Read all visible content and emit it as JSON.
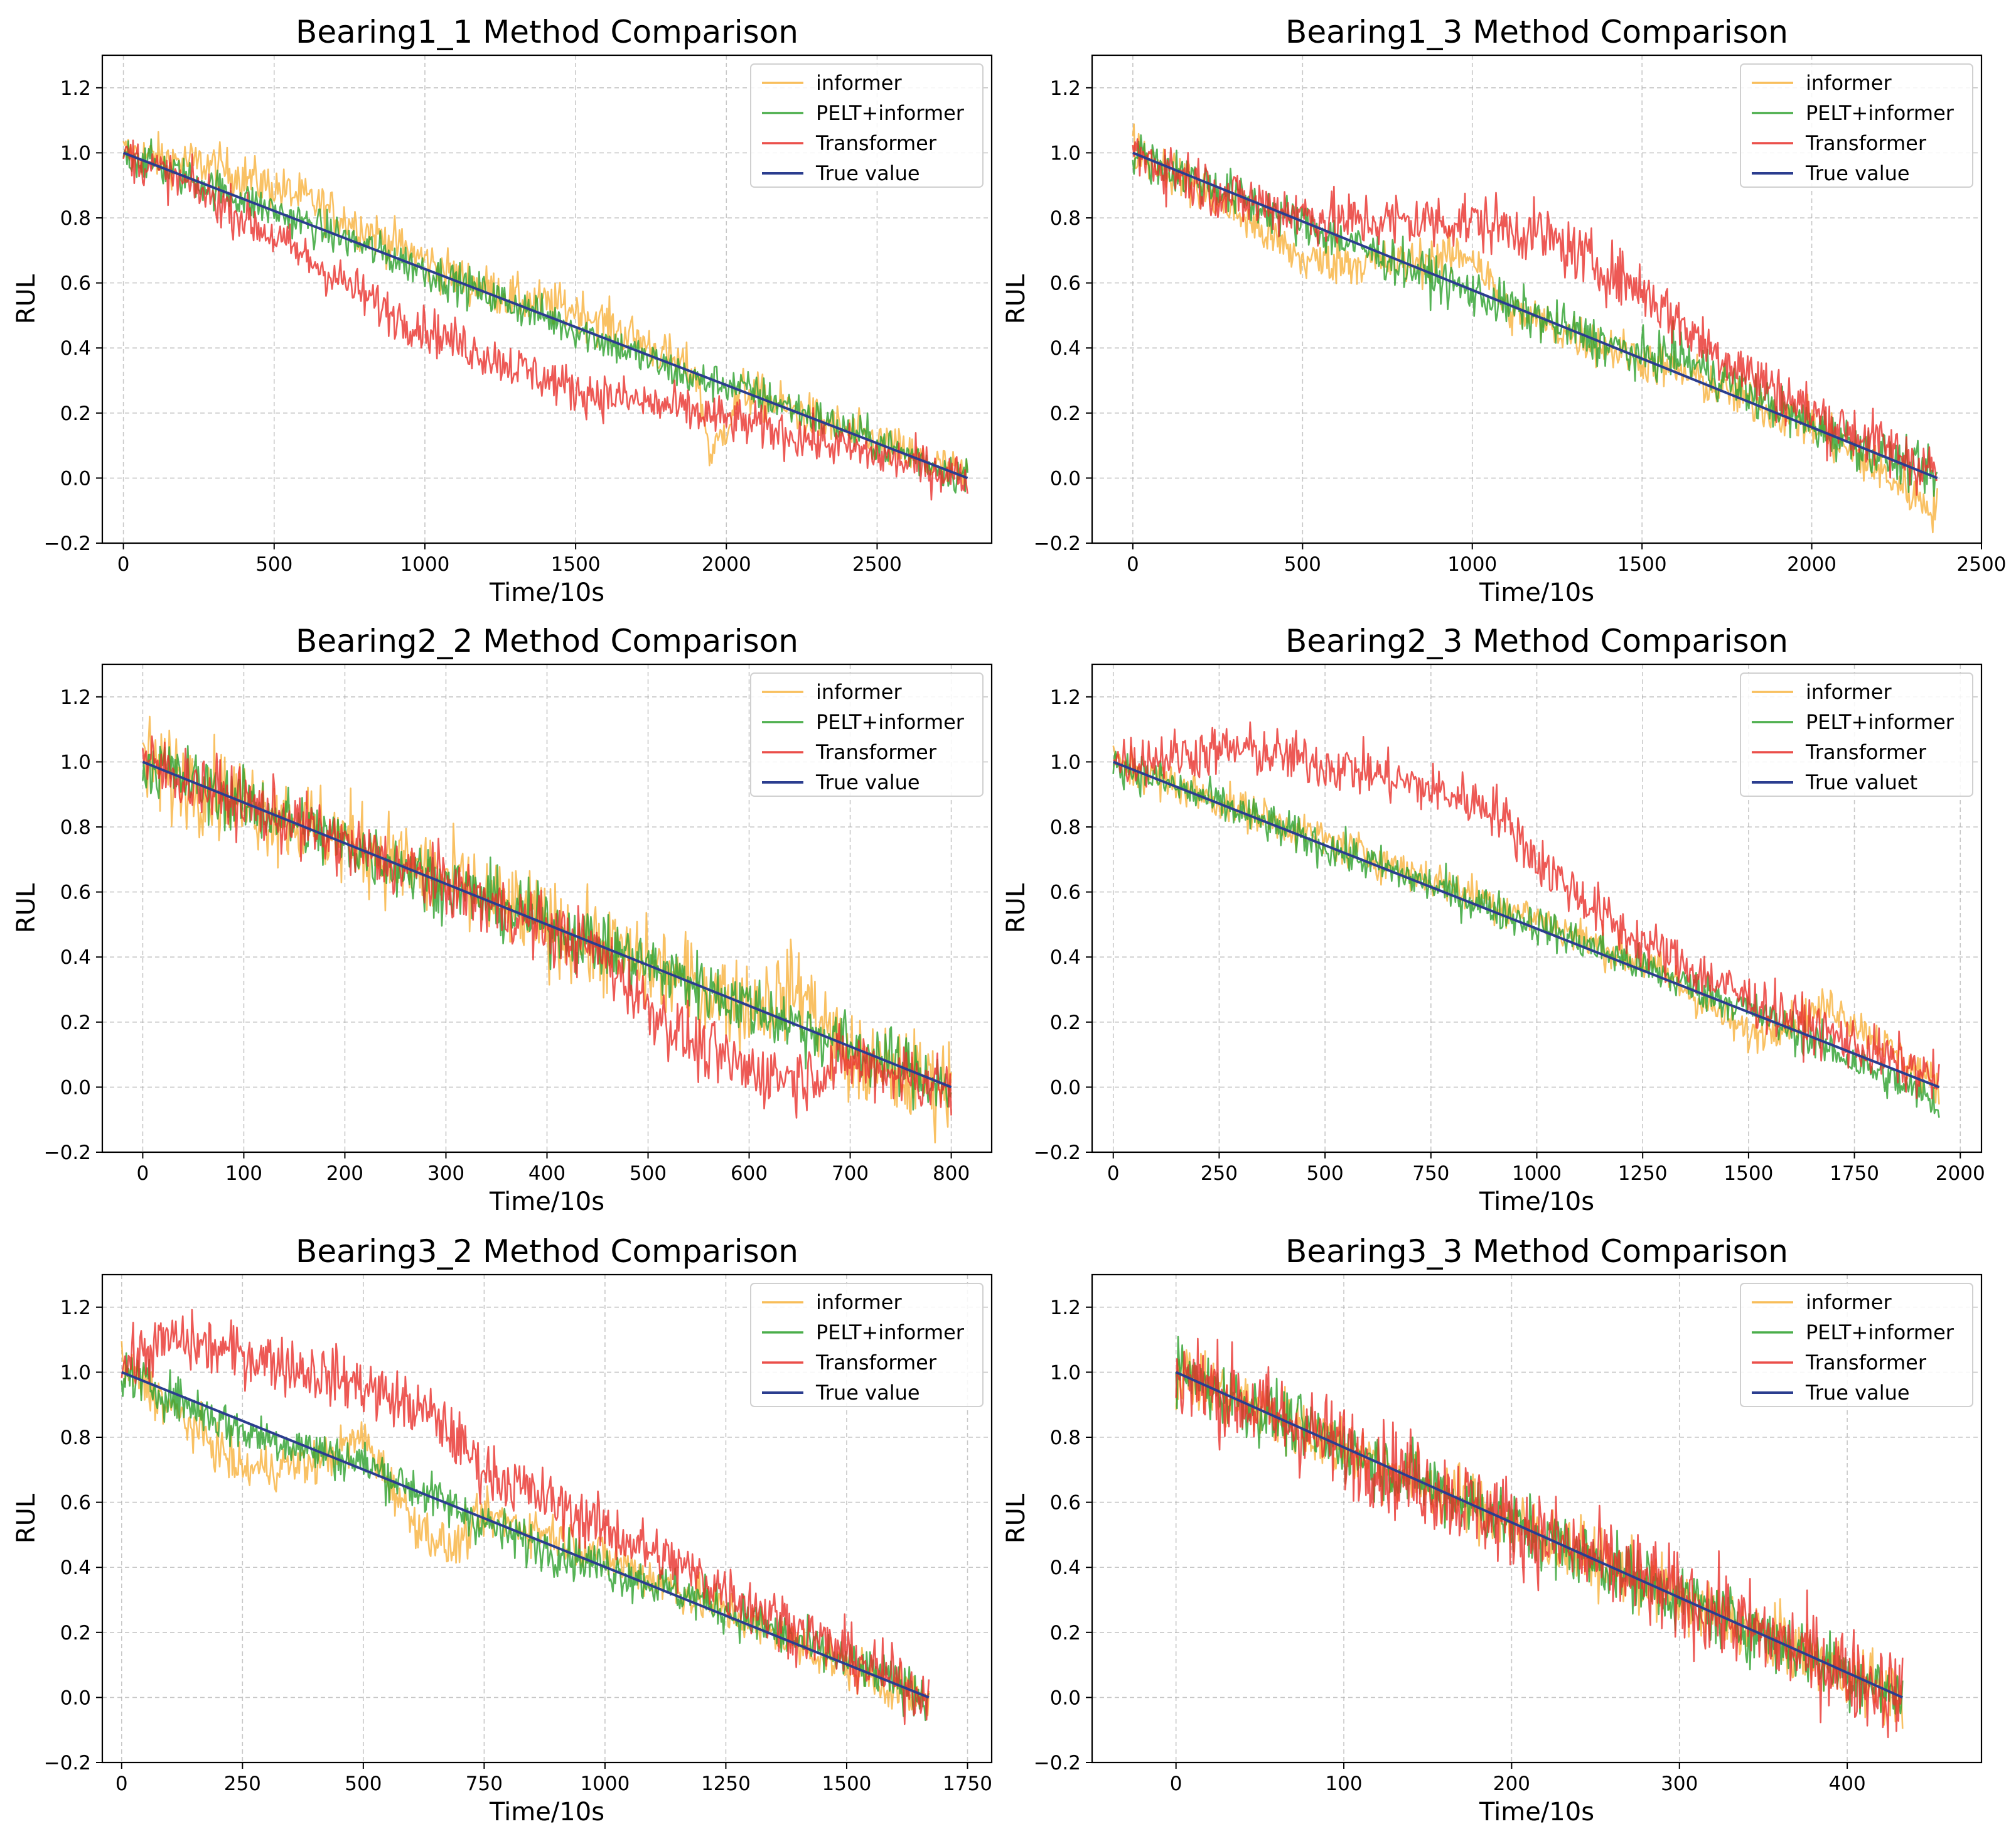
{
  "colors": {
    "informer": "#f7b13c",
    "pelt_informer": "#2ca02c",
    "transformer": "#e8302a",
    "true_value": "#2b3d8f"
  },
  "chart_data": [
    {
      "type": "line",
      "title": "Bearing1_1 Method Comparison",
      "xlabel": "Time/10s",
      "ylabel": "RUL",
      "xlim": [
        -70,
        2880
      ],
      "ylim": [
        -0.2,
        1.3
      ],
      "xticks": [
        0,
        500,
        1000,
        1500,
        2000,
        2500
      ],
      "yticks": [
        -0.2,
        0.0,
        0.2,
        0.4,
        0.6,
        0.8,
        1.0,
        1.2
      ],
      "grid": true,
      "legend_loc": "top-right",
      "series": [
        {
          "name": "informer",
          "color_key": "informer",
          "noise": 0.035,
          "x": [
            0,
            300,
            600,
            900,
            1100,
            1300,
            1500,
            1700,
            1900,
            1950,
            2050,
            2300,
            2800
          ],
          "y": [
            1.0,
            0.96,
            0.86,
            0.72,
            0.62,
            0.55,
            0.52,
            0.43,
            0.32,
            0.06,
            0.27,
            0.18,
            0.0
          ]
        },
        {
          "name": "PELT+informer",
          "color_key": "pelt_informer",
          "noise": 0.03,
          "x": [
            0,
            500,
            1000,
            1500,
            1900,
            2000,
            2100,
            2500,
            2800
          ],
          "y": [
            1.0,
            0.82,
            0.64,
            0.46,
            0.3,
            0.29,
            0.26,
            0.11,
            0.0
          ]
        },
        {
          "name": "Transformer",
          "color_key": "transformer",
          "noise": 0.035,
          "x": [
            0,
            300,
            600,
            900,
            1200,
            1500,
            1800,
            2100,
            2500,
            2800
          ],
          "y": [
            1.0,
            0.86,
            0.68,
            0.5,
            0.38,
            0.27,
            0.22,
            0.16,
            0.07,
            0.0
          ]
        },
        {
          "name": "True value",
          "color_key": "true_value",
          "noise": 0,
          "x": [
            0,
            2800
          ],
          "y": [
            1.0,
            0.0
          ]
        }
      ]
    },
    {
      "type": "line",
      "title": "Bearing1_3 Method Comparison",
      "xlabel": "Time/10s",
      "ylabel": "RUL",
      "xlim": [
        -120,
        2500
      ],
      "ylim": [
        -0.2,
        1.3
      ],
      "xticks": [
        0,
        500,
        1000,
        1500,
        2000,
        2500
      ],
      "yticks": [
        -0.2,
        0.0,
        0.2,
        0.4,
        0.6,
        0.8,
        1.0,
        1.2
      ],
      "grid": true,
      "legend_loc": "top-right",
      "series": [
        {
          "name": "informer",
          "color_key": "informer",
          "noise": 0.035,
          "x": [
            0,
            300,
            500,
            800,
            1000,
            1100,
            1300,
            1600,
            2000,
            2370
          ],
          "y": [
            1.02,
            0.82,
            0.67,
            0.66,
            0.69,
            0.52,
            0.44,
            0.33,
            0.16,
            -0.1
          ]
        },
        {
          "name": "PELT+informer",
          "color_key": "pelt_informer",
          "noise": 0.035,
          "x": [
            0,
            500,
            1000,
            1500,
            1600,
            2000,
            2370
          ],
          "y": [
            1.0,
            0.78,
            0.57,
            0.37,
            0.38,
            0.16,
            0.0
          ]
        },
        {
          "name": "Transformer",
          "color_key": "transformer",
          "noise": 0.045,
          "x": [
            0,
            300,
            600,
            1000,
            1200,
            1500,
            1700,
            2000,
            2370
          ],
          "y": [
            1.0,
            0.86,
            0.79,
            0.79,
            0.75,
            0.58,
            0.4,
            0.2,
            0.02
          ]
        },
        {
          "name": "True value",
          "color_key": "true_value",
          "noise": 0,
          "x": [
            0,
            2370
          ],
          "y": [
            1.0,
            0.0
          ]
        }
      ]
    },
    {
      "type": "line",
      "title": "Bearing2_2 Method Comparison",
      "xlabel": "Time/10s",
      "ylabel": "RUL",
      "xlim": [
        -40,
        840
      ],
      "ylim": [
        -0.2,
        1.3
      ],
      "xticks": [
        0,
        100,
        200,
        300,
        400,
        500,
        600,
        700,
        800
      ],
      "yticks": [
        -0.2,
        0.0,
        0.2,
        0.4,
        0.6,
        0.8,
        1.0,
        1.2
      ],
      "grid": true,
      "legend_loc": "top-right",
      "series": [
        {
          "name": "informer",
          "color_key": "informer",
          "noise": 0.07,
          "x": [
            0,
            200,
            400,
            500,
            600,
            650,
            700,
            800
          ],
          "y": [
            1.0,
            0.76,
            0.5,
            0.37,
            0.25,
            0.3,
            0.08,
            0.0
          ]
        },
        {
          "name": "PELT+informer",
          "color_key": "pelt_informer",
          "noise": 0.05,
          "x": [
            0,
            400,
            800
          ],
          "y": [
            1.0,
            0.5,
            0.0
          ]
        },
        {
          "name": "Transformer",
          "color_key": "transformer",
          "noise": 0.05,
          "x": [
            0,
            300,
            450,
            500,
            550,
            600,
            650,
            700,
            800
          ],
          "y": [
            1.0,
            0.62,
            0.42,
            0.25,
            0.12,
            0.05,
            0.03,
            0.08,
            0.0
          ]
        },
        {
          "name": "True value",
          "color_key": "true_value",
          "noise": 0,
          "x": [
            0,
            800
          ],
          "y": [
            1.0,
            0.0
          ]
        }
      ]
    },
    {
      "type": "line",
      "title": "Bearing2_3 Method Comparison",
      "xlabel": "Time/10s",
      "ylabel": "RUL",
      "xlim": [
        -50,
        2050
      ],
      "ylim": [
        -0.2,
        1.3
      ],
      "xticks": [
        0,
        250,
        500,
        750,
        1000,
        1250,
        1500,
        1750,
        2000
      ],
      "yticks": [
        -0.2,
        0.0,
        0.2,
        0.4,
        0.6,
        0.8,
        1.0,
        1.2
      ],
      "grid": true,
      "legend_loc": "top-right",
      "series": [
        {
          "name": "informer",
          "color_key": "informer",
          "noise": 0.03,
          "x": [
            0,
            500,
            1000,
            1300,
            1500,
            1700,
            1950
          ],
          "y": [
            1.0,
            0.76,
            0.52,
            0.35,
            0.16,
            0.25,
            0.0
          ]
        },
        {
          "name": "PELT+informer",
          "color_key": "pelt_informer",
          "noise": 0.03,
          "x": [
            0,
            500,
            1000,
            1500,
            1950
          ],
          "y": [
            1.0,
            0.74,
            0.5,
            0.24,
            -0.05
          ]
        },
        {
          "name": "Transformer",
          "color_key": "transformer",
          "noise": 0.04,
          "x": [
            0,
            300,
            600,
            900,
            1000,
            1200,
            1500,
            1950
          ],
          "y": [
            1.0,
            1.04,
            0.97,
            0.86,
            0.7,
            0.48,
            0.27,
            0.02
          ]
        },
        {
          "name": "True valuet",
          "color_key": "true_value",
          "noise": 0,
          "x": [
            0,
            1950
          ],
          "y": [
            1.0,
            0.0
          ]
        }
      ]
    },
    {
      "type": "line",
      "title": "Bearing3_2 Method Comparison",
      "xlabel": "Time/10s",
      "ylabel": "RUL",
      "xlim": [
        -40,
        1800
      ],
      "ylim": [
        -0.2,
        1.3
      ],
      "xticks": [
        0,
        250,
        500,
        750,
        1000,
        1250,
        1500,
        1750
      ],
      "yticks": [
        -0.2,
        0.0,
        0.2,
        0.4,
        0.6,
        0.8,
        1.0,
        1.2
      ],
      "grid": true,
      "legend_loc": "top-right",
      "series": [
        {
          "name": "informer",
          "color_key": "informer",
          "noise": 0.035,
          "x": [
            0,
            250,
            400,
            500,
            600,
            680,
            750,
            900,
            1200,
            1670
          ],
          "y": [
            1.02,
            0.7,
            0.72,
            0.8,
            0.55,
            0.45,
            0.56,
            0.5,
            0.3,
            -0.02
          ]
        },
        {
          "name": "PELT+informer",
          "color_key": "pelt_informer",
          "noise": 0.035,
          "x": [
            0,
            250,
            500,
            800,
            1200,
            1670
          ],
          "y": [
            1.0,
            0.82,
            0.72,
            0.5,
            0.3,
            0.0
          ]
        },
        {
          "name": "Transformer",
          "color_key": "transformer",
          "noise": 0.045,
          "x": [
            0,
            100,
            300,
            500,
            650,
            750,
            1000,
            1250,
            1500,
            1670
          ],
          "y": [
            1.02,
            1.1,
            1.04,
            0.96,
            0.86,
            0.7,
            0.52,
            0.33,
            0.13,
            0.0
          ]
        },
        {
          "name": "True value",
          "color_key": "true_value",
          "noise": 0,
          "x": [
            0,
            1670
          ],
          "y": [
            1.0,
            0.0
          ]
        }
      ]
    },
    {
      "type": "line",
      "title": "Bearing3_3 Method Comparison",
      "xlabel": "Time/10s",
      "ylabel": "RUL",
      "xlim": [
        -50,
        480
      ],
      "ylim": [
        -0.2,
        1.3
      ],
      "xticks": [
        0,
        100,
        200,
        300,
        400
      ],
      "yticks": [
        -0.2,
        0.0,
        0.2,
        0.4,
        0.6,
        0.8,
        1.0,
        1.2
      ],
      "grid": true,
      "legend_loc": "top-right",
      "series": [
        {
          "name": "informer",
          "color_key": "informer",
          "noise": 0.05,
          "x": [
            0,
            433
          ],
          "y": [
            1.0,
            0.0
          ]
        },
        {
          "name": "PELT+informer",
          "color_key": "pelt_informer",
          "noise": 0.05,
          "x": [
            0,
            433
          ],
          "y": [
            1.0,
            0.0
          ]
        },
        {
          "name": "Transformer",
          "color_key": "transformer",
          "noise": 0.07,
          "x": [
            0,
            433
          ],
          "y": [
            1.0,
            0.0
          ]
        },
        {
          "name": "True value",
          "color_key": "true_value",
          "noise": 0,
          "x": [
            0,
            433
          ],
          "y": [
            1.0,
            0.0
          ]
        }
      ]
    }
  ]
}
